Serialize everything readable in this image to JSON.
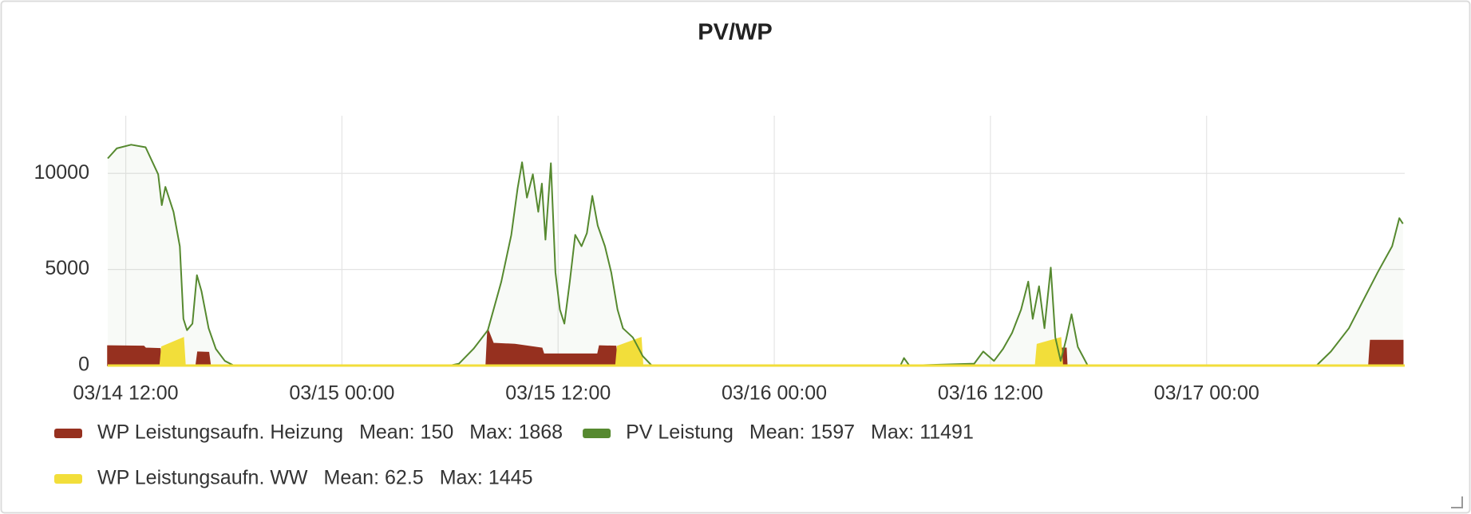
{
  "chart_data": {
    "type": "timeseries",
    "title": "PV/WP",
    "xlim": [
      11,
      83
    ],
    "xticks": [
      {
        "value": 12,
        "label": "03/14 12:00"
      },
      {
        "value": 24,
        "label": "03/15 00:00"
      },
      {
        "value": 36,
        "label": "03/15 12:00"
      },
      {
        "value": 48,
        "label": "03/16 00:00"
      },
      {
        "value": 60,
        "label": "03/16 12:00"
      },
      {
        "value": 72,
        "label": "03/17 00:00"
      }
    ],
    "ylim": [
      0,
      13000
    ],
    "yticks": [
      0,
      5000,
      10000
    ],
    "grid": true,
    "legend_stat_labels": [
      "Mean:",
      "Max:"
    ],
    "series": [
      {
        "name": "WP Leistungsaufn. Heizung",
        "color": "#96301f",
        "style": "area",
        "stats": [
          150,
          1868
        ],
        "x": [
          11,
          13,
          13.1,
          13.9,
          13.95,
          15.9,
          16.0,
          16.6,
          16.7,
          32.0,
          32.1,
          32.4,
          33.6,
          35.1,
          35.2,
          38.2,
          38.3,
          39.2,
          39.3,
          63.9,
          63.95,
          64.2,
          64.25,
          81.0,
          81.1,
          82.9
        ],
        "values": [
          1020,
          1000,
          900,
          880,
          0,
          0,
          700,
          680,
          0,
          0,
          1868,
          1150,
          1100,
          900,
          600,
          600,
          1020,
          1000,
          0,
          0,
          900,
          900,
          0,
          0,
          1310,
          1310
        ]
      },
      {
        "name": "PV Leistung",
        "color": "#56892f",
        "style": "line",
        "stats": [
          1597,
          11491
        ],
        "x": [
          11.0,
          11.5,
          12.3,
          13.1,
          13.8,
          14.0,
          14.2,
          14.65,
          15.0,
          15.2,
          15.4,
          15.7,
          15.95,
          16.2,
          16.6,
          17.0,
          17.5,
          18.0,
          30.0,
          30.5,
          31.3,
          32.1,
          32.85,
          33.4,
          33.75,
          34.0,
          34.27,
          34.6,
          34.9,
          35.1,
          35.3,
          35.6,
          35.85,
          36.1,
          36.35,
          36.65,
          36.95,
          37.3,
          37.6,
          37.9,
          38.2,
          38.6,
          38.95,
          39.3,
          39.6,
          40.15,
          40.7,
          41.2,
          55.0,
          55.2,
          55.5,
          59.1,
          59.6,
          60.2,
          60.7,
          61.2,
          61.7,
          62.1,
          62.35,
          62.7,
          63.0,
          63.35,
          63.6,
          63.9,
          64.2,
          64.5,
          64.85,
          65.4,
          78.1,
          78.9,
          79.9,
          80.7,
          81.5,
          82.3,
          82.7,
          82.9
        ],
        "values": [
          10780,
          11300,
          11491,
          11360,
          9950,
          8350,
          9300,
          8000,
          6200,
          2430,
          1840,
          2180,
          4700,
          3880,
          1940,
          870,
          240,
          0,
          0,
          100,
          870,
          1840,
          4370,
          6800,
          9220,
          10580,
          8740,
          9950,
          8000,
          9470,
          6550,
          10530,
          4850,
          2910,
          2180,
          4370,
          6800,
          6210,
          6890,
          8830,
          7280,
          6210,
          4850,
          2910,
          1940,
          1460,
          490,
          0,
          0,
          390,
          0,
          100,
          730,
          240,
          870,
          1700,
          2910,
          4370,
          2430,
          4130,
          1940,
          5100,
          1460,
          240,
          1360,
          2670,
          970,
          0,
          0,
          730,
          1940,
          3400,
          4850,
          6210,
          7670,
          7380
        ]
      },
      {
        "name": "WP Leistungsaufn. WW",
        "color": "#f2de3a",
        "style": "area",
        "stats": [
          62.5,
          1445
        ],
        "x": [
          13.9,
          14.0,
          15.2,
          15.3,
          39.2,
          39.3,
          40.6,
          40.7,
          62.5,
          62.6,
          63.9,
          64.0
        ],
        "values": [
          0,
          970,
          1445,
          0,
          0,
          1000,
          1445,
          0,
          0,
          1100,
          1445,
          0
        ]
      }
    ]
  }
}
